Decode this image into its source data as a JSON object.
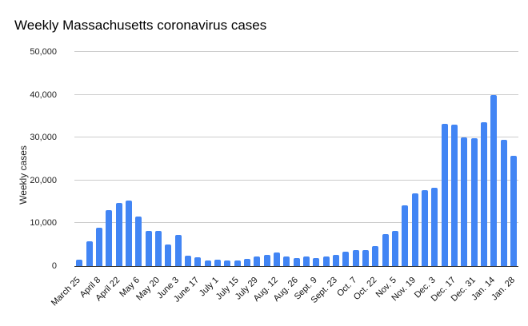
{
  "title": "Weekly Massachusetts coronavirus cases",
  "colors": {
    "bar": "#4285f4",
    "gridline": "#cccccc",
    "axis_line": "#333333",
    "text": "#222222",
    "background": "#ffffff"
  },
  "chart_data": {
    "type": "bar",
    "title": "Weekly Massachusetts coronavirus cases",
    "xlabel": "",
    "ylabel": "Weekly cases",
    "ylim": [
      0,
      50000
    ],
    "grid": true,
    "legend": "none",
    "bar_color": "#4285f4",
    "y_ticks": [
      {
        "value": 0,
        "label": "0"
      },
      {
        "value": 10000,
        "label": "10,000"
      },
      {
        "value": 20000,
        "label": "20,000"
      },
      {
        "value": 30000,
        "label": "30,000"
      },
      {
        "value": 40000,
        "label": "40,000"
      },
      {
        "value": 50000,
        "label": "50,000"
      }
    ],
    "categories": [
      "March 25",
      "",
      "April 8",
      "",
      "April 22",
      "",
      "May 6",
      "",
      "May 20",
      "",
      "June 3",
      "",
      "June 17",
      "",
      "July 1",
      "",
      "July 15",
      "",
      "July 29",
      "",
      "Aug. 12",
      "",
      "Aug. 26",
      "",
      "Sept. 9",
      "",
      "Sept. 23",
      "",
      "Oct. 7",
      "",
      "Oct. 22",
      "",
      "Nov. 5",
      "",
      "Nov. 19",
      "",
      "Dec. 3",
      "",
      "Dec. 17",
      "",
      "Dec. 31",
      "",
      "Jan. 14",
      "",
      "Jan. 28"
    ],
    "values": [
      1500,
      5800,
      9000,
      13000,
      14700,
      15300,
      11500,
      8250,
      8250,
      5000,
      7200,
      2500,
      2000,
      1400,
      1500,
      1250,
      1400,
      1750,
      2200,
      2600,
      3100,
      2200,
      1900,
      2200,
      1950,
      2200,
      2600,
      3300,
      3800,
      3700,
      4600,
      7400,
      8200,
      14100,
      16900,
      17700,
      18300,
      33300,
      33000,
      30000,
      29800,
      33600,
      40000,
      29400,
      25800
    ]
  }
}
